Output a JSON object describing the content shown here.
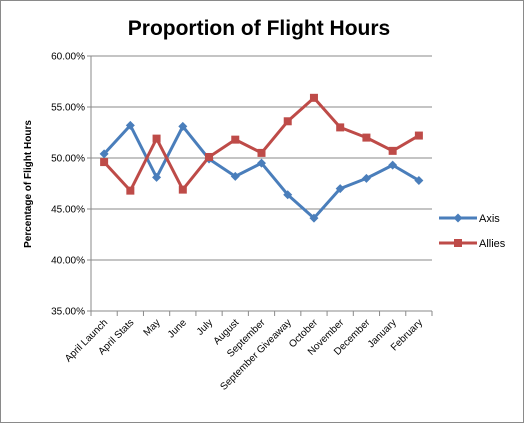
{
  "chart_data": {
    "type": "line",
    "title": "Proportion of Flight Hours",
    "xlabel": "",
    "ylabel": "Percentage of Flight Hours",
    "categories": [
      "April Launch",
      "April Stats",
      "May",
      "June",
      "July",
      "August",
      "September",
      "September Giveaway",
      "October",
      "November",
      "December",
      "January",
      "February"
    ],
    "ylim": [
      35,
      60
    ],
    "yticks": [
      "35.00%",
      "40.00%",
      "45.00%",
      "50.00%",
      "55.00%",
      "60.00%"
    ],
    "grid": true,
    "legend": "right",
    "series": [
      {
        "name": "Axis",
        "color": "#4a7ebb",
        "marker": "diamond",
        "values": [
          50.4,
          53.2,
          48.1,
          53.1,
          49.9,
          48.2,
          49.5,
          46.4,
          44.1,
          47.0,
          48.0,
          49.3,
          47.8
        ]
      },
      {
        "name": "Allies",
        "color": "#be4b48",
        "marker": "square",
        "values": [
          49.6,
          46.8,
          51.9,
          46.9,
          50.1,
          51.8,
          50.5,
          53.6,
          55.9,
          53.0,
          52.0,
          50.7,
          52.2
        ]
      }
    ]
  }
}
